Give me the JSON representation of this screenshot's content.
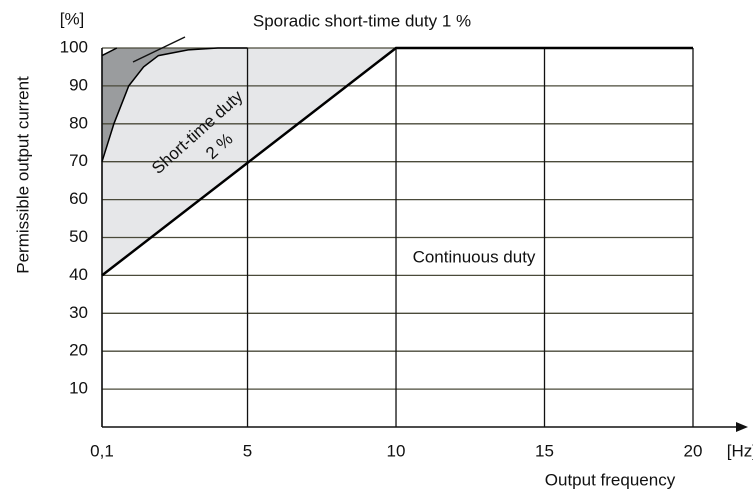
{
  "chart_data": {
    "type": "line",
    "axis_labels": {
      "y_unit": "[%]",
      "x_unit": "[Hz]",
      "y_title": "Permissible output current",
      "x_title": "Output frequency"
    },
    "annotations": [
      "Sporadic short-time duty 1 %",
      "Short-time duty",
      "2 %",
      "Continuous duty"
    ],
    "series": [
      {
        "x": [
          0.1,
          10,
          20
        ],
        "values": [
          40,
          100,
          100
        ],
        "color": "#000000",
        "fill": "#e6e7e9"
      },
      {
        "x": [
          0.1,
          0.5,
          1,
          1.5,
          2,
          3,
          4,
          5
        ],
        "values": [
          70,
          80,
          90,
          95,
          98,
          99.5,
          100,
          100
        ],
        "color": "#000000",
        "fill": "#9a9c9e"
      },
      {
        "x": [
          0.1,
          0.6
        ],
        "values": [
          98,
          100
        ],
        "color": "#000000"
      }
    ],
    "xlim": [
      0.1,
      20
    ],
    "xticks": [
      {
        "value": 0.1,
        "label": "0,1"
      },
      5,
      10,
      15,
      20
    ],
    "ylim": [
      0,
      100
    ],
    "yticks": [
      10,
      20,
      30,
      40,
      50,
      60,
      70,
      80,
      90,
      100
    ],
    "grid": true
  }
}
